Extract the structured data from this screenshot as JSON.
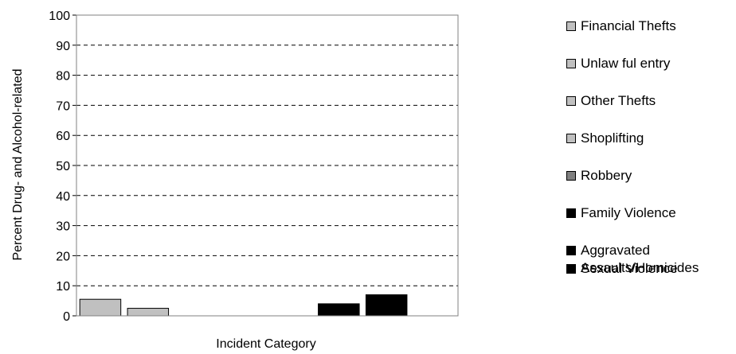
{
  "chart_data": {
    "type": "bar",
    "ylabel": "Percent Drug- and Alcohol-related",
    "xlabel": "Incident Category",
    "ylim": [
      0,
      100
    ],
    "yticks": [
      0,
      10,
      20,
      30,
      40,
      50,
      60,
      70,
      80,
      90,
      100
    ],
    "grid": "horizontal dashed",
    "legend_position": "right",
    "series": [
      {
        "name": "Financial Thefts",
        "value": 5.5,
        "color": "#c0c0c0"
      },
      {
        "name": "Unlaw ful entry",
        "value": 2.5,
        "color": "#c0c0c0"
      },
      {
        "name": "Other Thefts",
        "value": 0,
        "color": "#c0c0c0"
      },
      {
        "name": "Shoplifting",
        "value": 0,
        "color": "#c0c0c0"
      },
      {
        "name": "Robbery",
        "value": 0,
        "color": "#808080"
      },
      {
        "name": "Family Violence",
        "value": 4,
        "color": "#000000"
      },
      {
        "name": "Aggravated Assaults/Homicides",
        "value": 7,
        "color": "#000000"
      },
      {
        "name": "Sexual Violence",
        "value": 0,
        "color": "#000000"
      }
    ]
  }
}
